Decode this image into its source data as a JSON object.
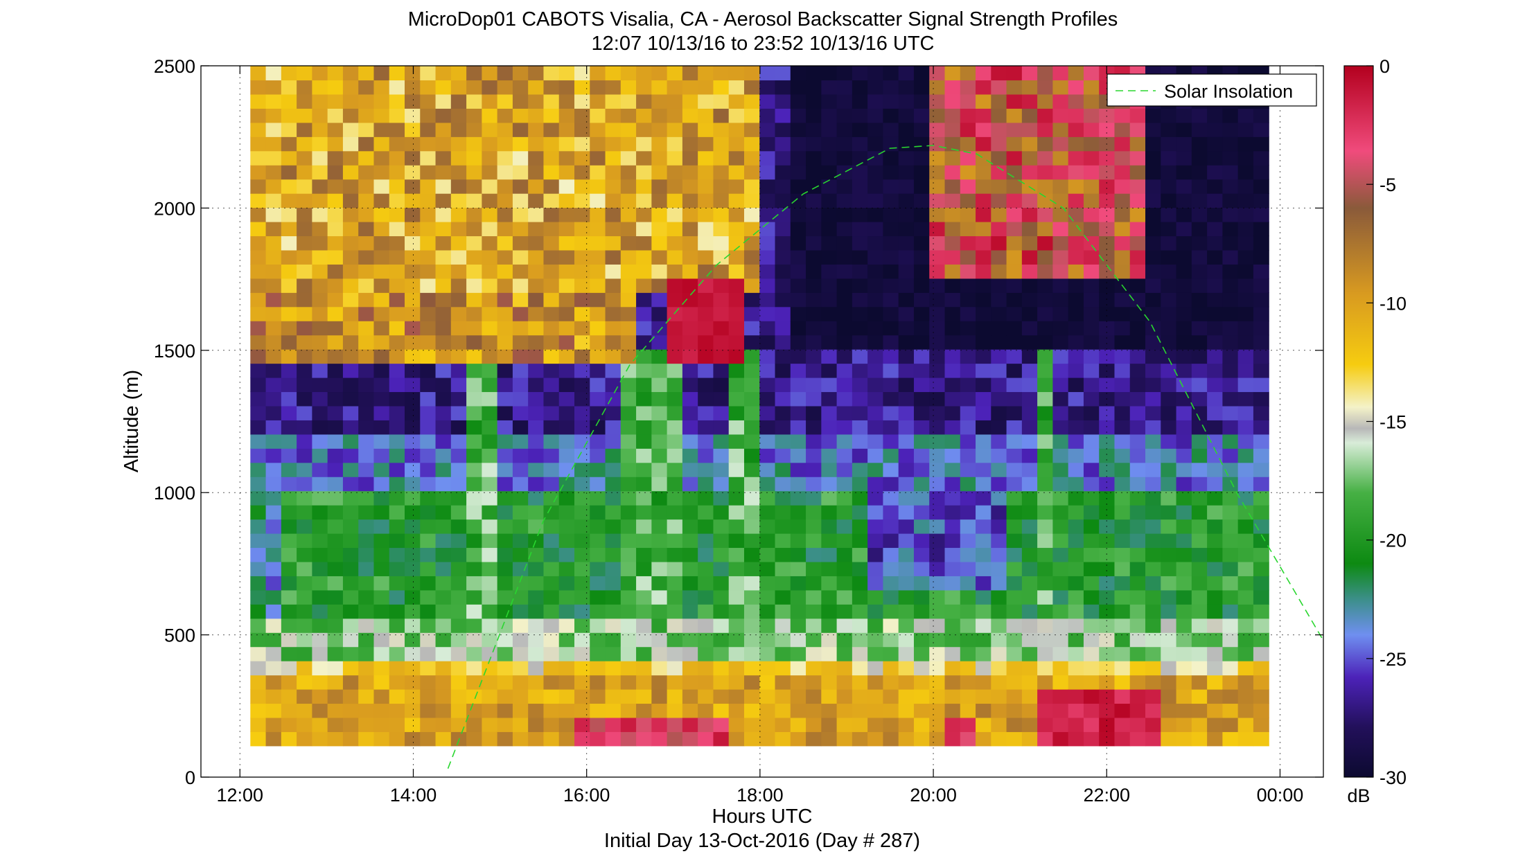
{
  "chart_data": {
    "type": "heatmap",
    "title": "MicroDop01 CABOTS Visalia, CA - Aerosol Backscatter Signal Strength Profiles",
    "subtitle": "12:07 10/13/16 to 23:52 10/13/16  UTC",
    "xlabel": "Hours UTC",
    "xlabel2": "Initial Day 13-Oct-2016 (Day # 287)",
    "ylabel": "Altitude (m)",
    "x_ticks": [
      "12:00",
      "14:00",
      "16:00",
      "18:00",
      "20:00",
      "22:00",
      "00:00"
    ],
    "x_tick_hours": [
      12,
      14,
      16,
      18,
      20,
      22,
      24
    ],
    "xlim": [
      11.55,
      24.5
    ],
    "y_ticks": [
      "0",
      "500",
      "1000",
      "1500",
      "2000",
      "2500"
    ],
    "y_tick_values": [
      0,
      500,
      1000,
      1500,
      2000,
      2500
    ],
    "ylim": [
      0,
      2500
    ],
    "grid": "dotted",
    "colorbar": {
      "label": "dB",
      "ticks": [
        "0",
        "-5",
        "-10",
        "-15",
        "-20",
        "-25",
        "-30"
      ],
      "tick_values": [
        0,
        -5,
        -10,
        -15,
        -20,
        -25,
        -30
      ],
      "range": [
        -30,
        0
      ]
    },
    "legend": {
      "entries": [
        "Solar Insolation"
      ],
      "placement": "top-right"
    },
    "data_extent": {
      "hours": [
        12.12,
        23.87
      ],
      "altitude_m": [
        110,
        2500
      ]
    },
    "layers": [
      {
        "name": "surface layer",
        "altitude_m": [
          110,
          420
        ],
        "value_db": -10
      },
      {
        "name": "near-surface peaks 21:00-22:30",
        "altitude_m": [
          110,
          300
        ],
        "value_db": -2
      },
      {
        "name": "boundary layer",
        "altitude_m": [
          420,
          1000
        ],
        "value_db": -20
      },
      {
        "name": "free troposphere",
        "altitude_m": [
          1000,
          1700
        ],
        "value_db": -27
      },
      {
        "name": "elevated plume 16:50-17:50",
        "altitude_m": [
          1450,
          1750
        ],
        "value_db": -1
      },
      {
        "name": "upper layer 12:00-18:00",
        "altitude_m": [
          1500,
          2500
        ],
        "value_db": -11
      }
    ],
    "solar_insolation": {
      "hours": [
        14.4,
        15.5,
        16.5,
        17.5,
        18.5,
        19.5,
        20.0,
        20.5,
        21.5,
        22.5,
        23.5,
        24.5
      ],
      "altitude_m": [
        30,
        900,
        1450,
        1800,
        2050,
        2210,
        2220,
        2190,
        2000,
        1600,
        1000,
        480
      ]
    }
  }
}
